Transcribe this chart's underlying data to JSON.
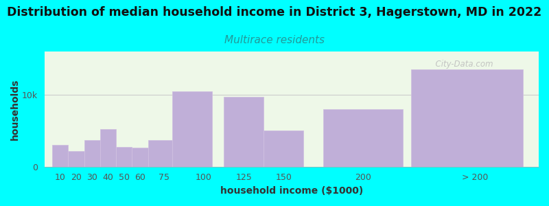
{
  "title": "Distribution of median household income in District 3, Hagerstown, MD in 2022",
  "subtitle": "Multirace residents",
  "xlabel": "household income ($1000)",
  "ylabel": "households",
  "background_color": "#00FFFF",
  "bar_color": "#c0afd8",
  "bar_edge_color": "#d0c0e0",
  "plot_bg_color": "#eef8e8",
  "watermark": "  City-Data.com",
  "title_fontsize": 12.5,
  "subtitle_fontsize": 11,
  "axis_label_fontsize": 10,
  "tick_fontsize": 9,
  "bar_left_edges": [
    5,
    15,
    25,
    35,
    45,
    55,
    65,
    80,
    112.5,
    137.5,
    175,
    230
  ],
  "bar_widths": [
    10,
    10,
    10,
    10,
    10,
    10,
    15,
    25,
    25,
    25,
    50,
    70
  ],
  "bar_heights": [
    3000,
    2200,
    3700,
    5200,
    2700,
    2600,
    3700,
    10500,
    9700,
    5000,
    8000,
    13500
  ],
  "xtick_positions": [
    10,
    20,
    30,
    40,
    50,
    60,
    75,
    100,
    125,
    150,
    200
  ],
  "xtick_labels": [
    "10",
    "20",
    "30",
    "40",
    "50",
    "60",
    "75",
    "100",
    "125",
    "150",
    "200"
  ],
  "xlabel_extra": "> 200",
  "xlabel_extra_pos": 270,
  "ylim": [
    0,
    16000
  ],
  "yticks": [
    0,
    10000
  ],
  "ytick_labels": [
    "0",
    "10k"
  ],
  "xlim": [
    0,
    310
  ]
}
